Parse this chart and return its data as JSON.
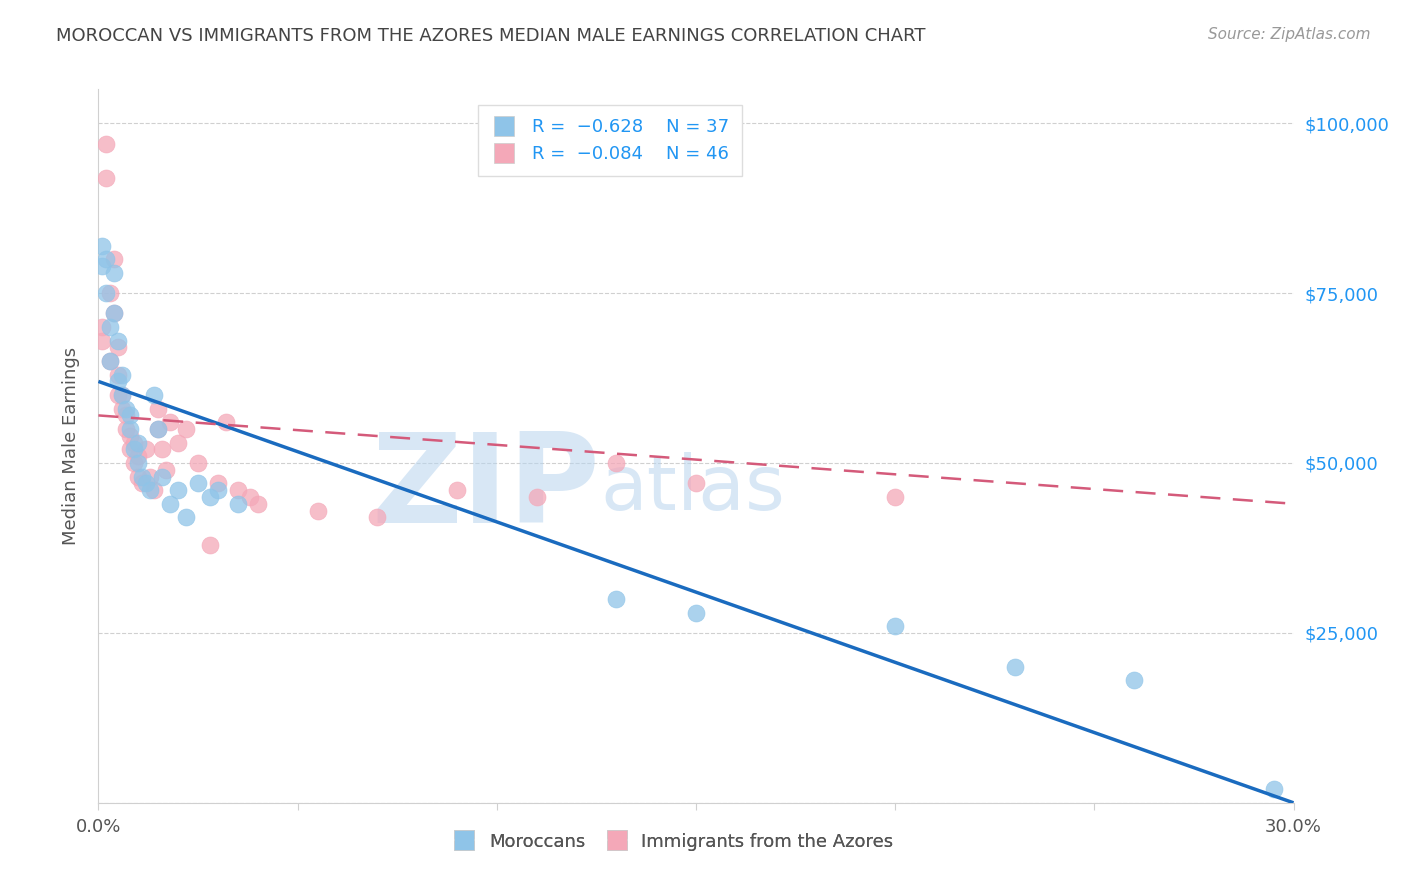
{
  "title": "MOROCCAN VS IMMIGRANTS FROM THE AZORES MEDIAN MALE EARNINGS CORRELATION CHART",
  "source_text": "Source: ZipAtlas.com",
  "ylabel": "Median Male Earnings",
  "right_ytick_labels": [
    "$100,000",
    "$75,000",
    "$50,000",
    "$25,000"
  ],
  "right_ytick_values": [
    100000,
    75000,
    50000,
    25000
  ],
  "blue_color": "#8fc4e8",
  "pink_color": "#f4a8b8",
  "blue_line_color": "#1a6bbf",
  "pink_line_color": "#d45a7a",
  "watermark_zip": "ZIP",
  "watermark_atlas": "atlas",
  "watermark_color": "#b8d4ee",
  "xlim": [
    0.0,
    0.3
  ],
  "ylim": [
    0,
    105000
  ],
  "blue_scatter_x": [
    0.001,
    0.001,
    0.002,
    0.002,
    0.003,
    0.003,
    0.004,
    0.004,
    0.005,
    0.005,
    0.006,
    0.006,
    0.007,
    0.008,
    0.008,
    0.009,
    0.01,
    0.01,
    0.011,
    0.012,
    0.013,
    0.014,
    0.015,
    0.016,
    0.018,
    0.02,
    0.022,
    0.025,
    0.028,
    0.03,
    0.035,
    0.13,
    0.15,
    0.2,
    0.23,
    0.26,
    0.295
  ],
  "blue_scatter_y": [
    82000,
    79000,
    75000,
    80000,
    70000,
    65000,
    78000,
    72000,
    62000,
    68000,
    60000,
    63000,
    58000,
    55000,
    57000,
    52000,
    53000,
    50000,
    48000,
    47000,
    46000,
    60000,
    55000,
    48000,
    44000,
    46000,
    42000,
    47000,
    45000,
    46000,
    44000,
    30000,
    28000,
    26000,
    20000,
    18000,
    2000
  ],
  "pink_scatter_x": [
    0.001,
    0.001,
    0.002,
    0.002,
    0.003,
    0.003,
    0.004,
    0.004,
    0.005,
    0.005,
    0.005,
    0.006,
    0.006,
    0.007,
    0.007,
    0.008,
    0.008,
    0.009,
    0.009,
    0.01,
    0.01,
    0.011,
    0.012,
    0.013,
    0.014,
    0.015,
    0.015,
    0.016,
    0.017,
    0.018,
    0.02,
    0.022,
    0.025,
    0.028,
    0.03,
    0.032,
    0.035,
    0.038,
    0.04,
    0.055,
    0.07,
    0.09,
    0.11,
    0.13,
    0.15,
    0.2
  ],
  "pink_scatter_y": [
    70000,
    68000,
    92000,
    97000,
    65000,
    75000,
    80000,
    72000,
    60000,
    63000,
    67000,
    58000,
    60000,
    55000,
    57000,
    52000,
    54000,
    50000,
    53000,
    48000,
    51000,
    47000,
    52000,
    48000,
    46000,
    58000,
    55000,
    52000,
    49000,
    56000,
    53000,
    55000,
    50000,
    38000,
    47000,
    56000,
    46000,
    45000,
    44000,
    43000,
    42000,
    46000,
    45000,
    50000,
    47000,
    45000
  ],
  "blue_line_x": [
    0.0,
    0.3
  ],
  "blue_line_y": [
    62000,
    0
  ],
  "pink_line_x": [
    0.0,
    0.3
  ],
  "pink_line_y": [
    57000,
    44000
  ]
}
